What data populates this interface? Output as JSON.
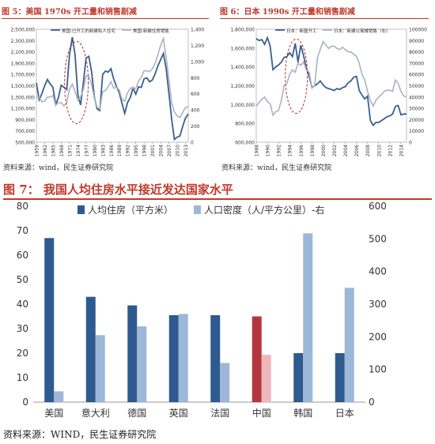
{
  "figure5": {
    "title": "图 5：美国 1970s 开工量和销售剧减",
    "source": "资料来源：wind，民生证券研究院",
    "legend": [
      "美国:已开工的新建私人住宅",
      "美国:新建住房销售"
    ],
    "colors": {
      "s1": "#3a5f8f",
      "s2": "#a8b3c2",
      "circle": "#b03030"
    },
    "left_ticks": [
      "2,500,000",
      "2,300,000",
      "2,100,000",
      "1,900,000",
      "1,700,000",
      "1,500,000",
      "1,300,000",
      "1,100,000",
      "900,000",
      "700,000",
      "500,000"
    ],
    "right_ticks": [
      "1,400",
      "1,200",
      "1,000",
      "800",
      "600",
      "400",
      "200",
      "0"
    ],
    "x_ticks": [
      "1959",
      "1962",
      "1965",
      "1968",
      "1971",
      "1974",
      "1977",
      "1980",
      "1983",
      "1986",
      "1989",
      "1992",
      "1995",
      "1998",
      "2001",
      "2004",
      "2007",
      "2010",
      "2013"
    ]
  },
  "figure6": {
    "title": "图 6：日本 1990s 开工量和销售剧减",
    "source": "资料来源：wind，民生证券研究院",
    "legend": [
      "日本：新屋开工",
      "日本：新建公寓楼销售（右）"
    ],
    "colors": {
      "s1": "#3a5f8f",
      "s2": "#a8b3c2",
      "circle": "#b03030"
    },
    "left_ticks": [
      "1,800,000",
      "1,600,000",
      "1,400,000",
      "1,200,000",
      "1,000,000",
      "800,000",
      "600,000"
    ],
    "right_ticks": [
      "100000",
      "90000",
      "80000",
      "70000",
      "60000",
      "50000",
      "40000",
      "30000",
      "20000",
      "10000",
      "0"
    ],
    "x_ticks": [
      "1988",
      "1990",
      "1992",
      "1994",
      "1996",
      "1998",
      "2000",
      "2002",
      "2004",
      "2006",
      "2008",
      "2010",
      "2012",
      "2014"
    ]
  },
  "figure7": {
    "title": "图 7：  我国人均住房水平接近发达国家水平",
    "source": "资料来源：WIND，民生证券研究院"
  },
  "chart_data": [
    {
      "type": "line",
      "title": "图 5：美国 1970s 开工量和销售剧减",
      "x": [
        1959,
        1960,
        1961,
        1962,
        1963,
        1964,
        1965,
        1966,
        1967,
        1968,
        1969,
        1970,
        1971,
        1972,
        1973,
        1974,
        1975,
        1976,
        1977,
        1978,
        1979,
        1980,
        1981,
        1982,
        1983,
        1984,
        1985,
        1986,
        1987,
        1988,
        1989,
        1990,
        1991,
        1992,
        1993,
        1994,
        1995,
        1996,
        1997,
        1998,
        1999,
        2000,
        2001,
        2002,
        2003,
        2004,
        2005,
        2006,
        2007,
        2008,
        2009,
        2010,
        2011,
        2012,
        2013,
        2014
      ],
      "ylim_left": [
        500000,
        2500000
      ],
      "ylim_right": [
        0,
        1400
      ],
      "series": [
        {
          "name": "美国:已开工的新建私人住宅",
          "axis": "left",
          "values": [
            1550000,
            1250000,
            1360000,
            1500000,
            1610000,
            1530000,
            1470000,
            1170000,
            1290000,
            1510000,
            1470000,
            1430000,
            2050000,
            2360000,
            2050000,
            1340000,
            1160000,
            1540000,
            1990000,
            2020000,
            1750000,
            1300000,
            1090000,
            1060000,
            1700000,
            1760000,
            1740000,
            1800000,
            1620000,
            1490000,
            1380000,
            1190000,
            1010000,
            1200000,
            1290000,
            1460000,
            1350000,
            1480000,
            1470000,
            1620000,
            1640000,
            1570000,
            1600000,
            1710000,
            1850000,
            1960000,
            2070000,
            1800000,
            1360000,
            900000,
            550000,
            590000,
            610000,
            780000,
            930000,
            1000000
          ]
        },
        {
          "name": "美国:新建住房销售",
          "axis": "right",
          "values": [
            560,
            560,
            500,
            510,
            560,
            560,
            580,
            460,
            490,
            490,
            450,
            490,
            660,
            720,
            630,
            520,
            560,
            650,
            820,
            820,
            710,
            545,
            435,
            410,
            625,
            640,
            690,
            750,
            670,
            680,
            650,
            530,
            510,
            610,
            670,
            670,
            665,
            760,
            805,
            885,
            885,
            875,
            910,
            975,
            1085,
            1200,
            1285,
            1050,
            775,
            485,
            375,
            325,
            305,
            370,
            430,
            440
          ]
        }
      ]
    },
    {
      "type": "line",
      "title": "图 6：日本 1990s 开工量和销售剧减",
      "x": [
        1988,
        1988.5,
        1989,
        1989.5,
        1990,
        1990.5,
        1991,
        1991.5,
        1992,
        1992.5,
        1993,
        1993.5,
        1994,
        1994.5,
        1995,
        1995.5,
        1996,
        1996.5,
        1997,
        1997.5,
        1998,
        1998.5,
        1999,
        1999.5,
        2000,
        2000.5,
        2001,
        2001.5,
        2002,
        2002.5,
        2003,
        2003.5,
        2004,
        2004.5,
        2005,
        2005.5,
        2006,
        2006.5,
        2007,
        2007.5,
        2008,
        2008.5,
        2009,
        2009.5,
        2010,
        2010.5,
        2011,
        2011.5,
        2012,
        2012.5,
        2013,
        2013.5,
        2014,
        2014.5,
        2015
      ],
      "ylim_left": [
        600000,
        1800000
      ],
      "ylim_right": [
        0,
        100000
      ],
      "series": [
        {
          "name": "日本：新屋开工",
          "axis": "left",
          "values": [
            1700000,
            1680000,
            1690000,
            1640000,
            1710000,
            1620000,
            1370000,
            1400000,
            1420000,
            1450000,
            1500000,
            1510000,
            1550000,
            1510000,
            1650000,
            1450000,
            1630000,
            1520000,
            1390000,
            1300000,
            1180000,
            1200000,
            1220000,
            1250000,
            1210000,
            1180000,
            1170000,
            1160000,
            1150000,
            1170000,
            1160000,
            1180000,
            1190000,
            1230000,
            1250000,
            1290000,
            1300000,
            1150000,
            1100000,
            1060000,
            1090000,
            830000,
            780000,
            810000,
            810000,
            830000,
            850000,
            870000,
            880000,
            900000,
            980000,
            990000,
            890000,
            900000,
            900000
          ]
        },
        {
          "name": "日本：新建公寓楼销售（右）",
          "axis": "right",
          "values": [
            32000,
            35000,
            38000,
            40000,
            36000,
            34000,
            24000,
            27000,
            28000,
            37000,
            50000,
            52000,
            60000,
            64000,
            62000,
            70000,
            68000,
            71000,
            64000,
            62000,
            48000,
            50000,
            75000,
            82000,
            89000,
            86000,
            83000,
            85000,
            85000,
            83000,
            82000,
            84000,
            82000,
            80000,
            80000,
            78000,
            76000,
            70000,
            60000,
            55000,
            45000,
            37000,
            32000,
            37000,
            40000,
            42000,
            45000,
            46000,
            46000,
            45000,
            55000,
            52000,
            45000,
            41000,
            40000
          ]
        }
      ]
    },
    {
      "type": "bar",
      "title": "图 7：  我国人均住房水平接近发达国家水平",
      "categories": [
        "美国",
        "意大利",
        "德国",
        "英国",
        "法国",
        "中国",
        "韩国",
        "日本"
      ],
      "ylim_left": [
        0,
        80
      ],
      "ylim_right": [
        0,
        600
      ],
      "left_ticks": [
        0,
        10,
        20,
        30,
        40,
        50,
        60,
        70,
        80
      ],
      "right_ticks": [
        0,
        100,
        200,
        300,
        400,
        500,
        600
      ],
      "series": [
        {
          "name": "人均住房（平方米）",
          "axis": "left",
          "color": "#2e5a8f",
          "values": [
            67,
            43,
            39.5,
            35.5,
            35.5,
            35,
            20,
            20
          ]
        },
        {
          "name": "人口密度（人/平方公里）-右",
          "axis": "right",
          "color": "#9db7d8",
          "values": [
            33,
            205,
            232,
            270,
            120,
            145,
            517,
            350
          ]
        }
      ],
      "highlight": {
        "category": "中国",
        "colors": [
          "#b5363f",
          "#edb8bc"
        ]
      }
    }
  ]
}
